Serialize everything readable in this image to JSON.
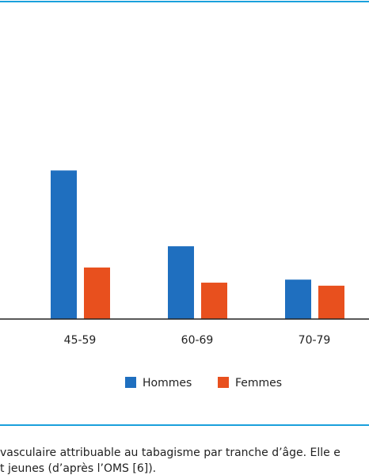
{
  "chart_data": {
    "type": "bar",
    "categories": [
      "45-59",
      "60-69",
      "70-79"
    ],
    "series": [
      {
        "name": "Hommes",
        "color": "#1f6fbf",
        "values": [
          49,
          24,
          13
        ]
      },
      {
        "name": "Femmes",
        "color": "#e8501e",
        "values": [
          17,
          12,
          11
        ]
      }
    ],
    "ylim": [
      0,
      100
    ],
    "legend": "bottom",
    "caption": [
      "vasculaire attribuable au tabagisme par tranche d’âge. Elle e",
      "t jeunes (d’après l’OMS [6])."
    ]
  }
}
